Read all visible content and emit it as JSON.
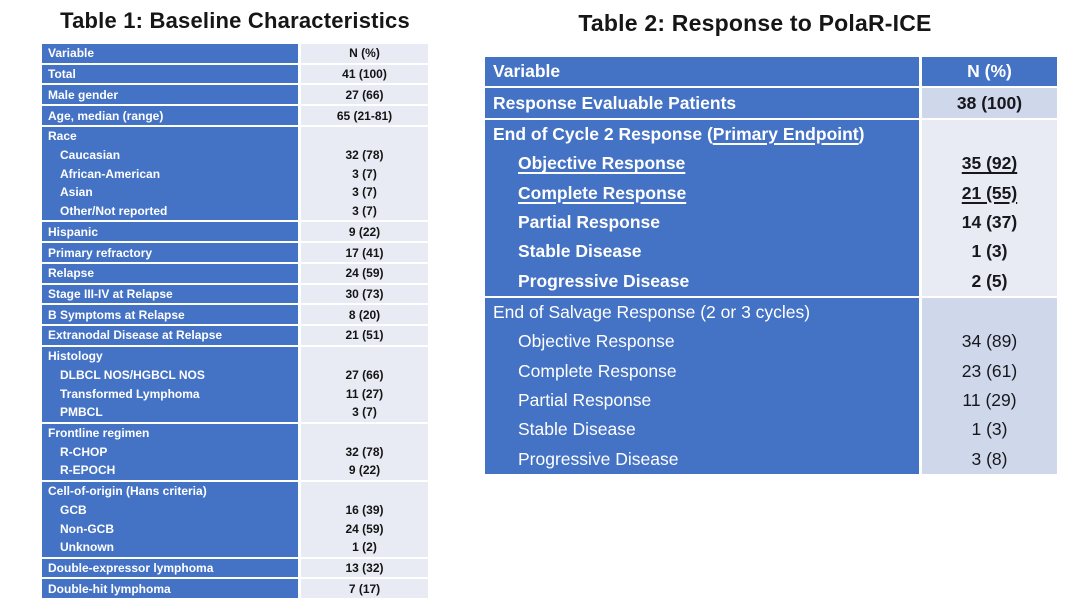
{
  "colors": {
    "table_blue": "#4472C4",
    "t1_value_bg": "#E9EBF4",
    "t2_value_bg_light": "#E8EAF4",
    "t2_value_bg_medium": "#CFD7EA",
    "separator": "#FFFFFF",
    "label_text": "#FFFFFF",
    "value_text": "#141414"
  },
  "table1": {
    "title": "Table 1: Baseline Characteristics",
    "rows": [
      {
        "label": "Variable",
        "value": "N (%)",
        "header": true
      },
      {
        "label": "Total",
        "value": "41 (100)",
        "sep": true
      },
      {
        "label": "Male gender",
        "value": "27 (66)",
        "sep": true
      },
      {
        "label": "Age, median (range)",
        "value": "65 (21-81)",
        "sep": true
      },
      {
        "label": "Race",
        "value": "",
        "sep": true
      },
      {
        "label": "Caucasian",
        "value": "32 (78)",
        "indent": true
      },
      {
        "label": "African-American",
        "value": "3 (7)",
        "indent": true
      },
      {
        "label": "Asian",
        "value": "3 (7)",
        "indent": true
      },
      {
        "label": "Other/Not reported",
        "value": "3 (7)",
        "indent": true
      },
      {
        "label": "Hispanic",
        "value": "9 (22)",
        "sep": true
      },
      {
        "label": "Primary refractory",
        "value": "17 (41)",
        "sep": true
      },
      {
        "label": "Relapse",
        "value": "24 (59)",
        "sep": true
      },
      {
        "label": "Stage III-IV at Relapse",
        "value": "30 (73)",
        "sep": true
      },
      {
        "label": "B Symptoms at Relapse",
        "value": "8 (20)",
        "sep": true
      },
      {
        "label": "Extranodal Disease at Relapse",
        "value": "21 (51)",
        "sep": true
      },
      {
        "label": "Histology",
        "value": "",
        "sep": true
      },
      {
        "label": "DLBCL NOS/HGBCL NOS",
        "value": "27 (66)",
        "indent": true
      },
      {
        "label": "Transformed Lymphoma",
        "value": "11 (27)",
        "indent": true
      },
      {
        "label": "PMBCL",
        "value": "3 (7)",
        "indent": true
      },
      {
        "label": "Frontline regimen",
        "value": "",
        "sep": true
      },
      {
        "label": "R-CHOP",
        "value": "32 (78)",
        "indent": true
      },
      {
        "label": "R-EPOCH",
        "value": "9 (22)",
        "indent": true
      },
      {
        "label": "Cell-of-origin (Hans criteria)",
        "value": "",
        "sep": true
      },
      {
        "label": "GCB",
        "value": "16 (39)",
        "indent": true
      },
      {
        "label": "Non-GCB",
        "value": "24 (59)",
        "indent": true
      },
      {
        "label": "Unknown",
        "value": "1 (2)",
        "indent": true
      },
      {
        "label": "Double-expressor lymphoma",
        "value": "13 (32)",
        "sep": true
      },
      {
        "label": "Double-hit lymphoma",
        "value": "7 (17)",
        "sep": true
      }
    ]
  },
  "table2": {
    "title": "Table 2: Response to PolaR-ICE",
    "rows": [
      {
        "label": "Variable",
        "value": "N (%)",
        "header": true
      },
      {
        "label": "Response Evaluable Patients",
        "value": "38 (100)",
        "sep": true,
        "bold": true,
        "band": "medium"
      },
      {
        "label": "End of Cycle 2 Response (Primary Endpoint)",
        "label_parts": [
          {
            "t": "End of Cycle 2 Response ("
          },
          {
            "t": "Primary Endpoint",
            "u": true
          },
          {
            "t": ")"
          }
        ],
        "value": "",
        "sep": true,
        "bold": true,
        "band": "light"
      },
      {
        "label": "Objective Response",
        "value": "35 (92)",
        "indent": true,
        "bold": true,
        "underline": true,
        "band": "light"
      },
      {
        "label": "Complete Response",
        "value": "21 (55)",
        "indent": true,
        "bold": true,
        "underline": true,
        "band": "light"
      },
      {
        "label": "Partial Response",
        "value": "14 (37)",
        "indent": true,
        "bold": true,
        "band": "light"
      },
      {
        "label": "Stable Disease",
        "value": "1 (3)",
        "indent": true,
        "bold": true,
        "band": "light"
      },
      {
        "label": "Progressive Disease",
        "value": "2 (5)",
        "indent": true,
        "bold": true,
        "band": "light"
      },
      {
        "label": "End of Salvage Response (2 or 3 cycles)",
        "value": "",
        "sep": true,
        "band": "medium"
      },
      {
        "label": "Objective Response",
        "value": "34 (89)",
        "indent": true,
        "band": "medium"
      },
      {
        "label": "Complete Response",
        "value": "23 (61)",
        "indent": true,
        "band": "medium"
      },
      {
        "label": "Partial Response",
        "value": "11 (29)",
        "indent": true,
        "band": "medium"
      },
      {
        "label": "Stable Disease",
        "value": "1 (3)",
        "indent": true,
        "band": "medium"
      },
      {
        "label": "Progressive Disease",
        "value": "3 (8)",
        "indent": true,
        "band": "medium"
      }
    ]
  }
}
